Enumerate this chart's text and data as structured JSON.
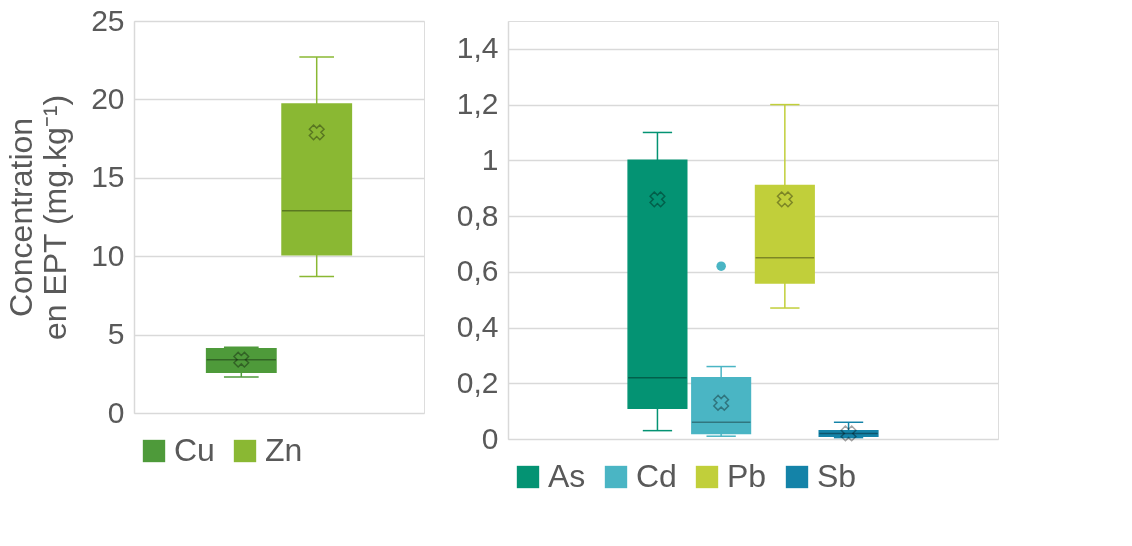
{
  "chart_data": [
    {
      "type": "box",
      "ylabel": "Concentration en EPT (mg.kg⁻¹)",
      "categories": [
        null
      ],
      "ylim": [
        0,
        25
      ],
      "yticks": [
        0,
        5,
        10,
        15,
        20,
        25
      ],
      "grid": "y",
      "legend": "bottom",
      "tick_labels": "y",
      "series": [
        {
          "name": "Cu",
          "color": "#4e9a3a",
          "boxes": [
            {
              "low": 2.3,
              "q1": 2.6,
              "median": 3.4,
              "q3": 4.1,
              "high": 4.2,
              "mean": 3.4
            }
          ]
        },
        {
          "name": "Zn",
          "color": "#8ab833",
          "boxes": [
            {
              "low": 8.7,
              "q1": 10.1,
              "median": 12.9,
              "q3": 19.7,
              "high": 22.7,
              "mean": 17.9
            }
          ]
        }
      ]
    },
    {
      "type": "box",
      "categories": [
        null
      ],
      "ylim": [
        0,
        1.5
      ],
      "yticks": [
        0,
        {
          "value": 0.2,
          "label": "0,2"
        },
        {
          "value": 0.4,
          "label": "0,4"
        },
        {
          "value": 0.6,
          "label": "0,6"
        },
        {
          "value": 0.8,
          "label": "0,8"
        },
        1,
        {
          "value": 1.2,
          "label": "1,2"
        },
        {
          "value": 1.4,
          "label": "1,4"
        }
      ],
      "grid": "y",
      "legend": "bottom",
      "tick_labels": "y",
      "series": [
        {
          "name": "As",
          "color": "#049373",
          "boxes": [
            {
              "low": 0.03,
              "q1": 0.11,
              "median": 0.22,
              "q3": 1.0,
              "high": 1.1,
              "mean": 0.86
            }
          ]
        },
        {
          "name": "Cd",
          "color": "#4ab5c4",
          "boxes": [
            {
              "low": 0.01,
              "q1": 0.02,
              "median": 0.06,
              "q3": 0.22,
              "high": 0.26,
              "mean": 0.13,
              "outliers": [
                0.62
              ]
            }
          ]
        },
        {
          "name": "Pb",
          "color": "#c1cf3a",
          "boxes": [
            {
              "low": 0.47,
              "q1": 0.56,
              "median": 0.65,
              "q3": 0.91,
              "high": 1.2,
              "mean": 0.86
            }
          ]
        },
        {
          "name": "Sb",
          "color": "#1483a8",
          "boxes": [
            {
              "low": 0.005,
              "q1": 0.01,
              "median": 0.02,
              "q3": 0.03,
              "high": 0.06,
              "mean": 0.02
            }
          ]
        }
      ]
    }
  ]
}
